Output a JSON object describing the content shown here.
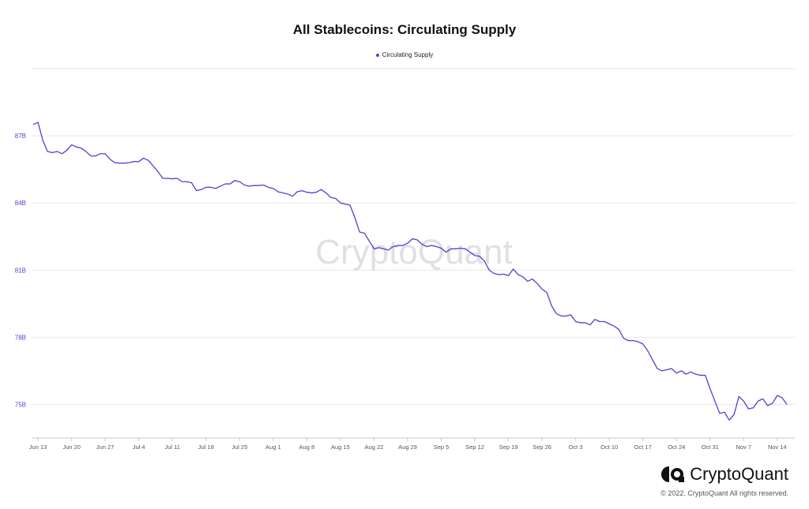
{
  "chart_data": {
    "type": "line",
    "title": "All Stablecoins: Circulating Supply",
    "legend_position": "top-center",
    "grid": true,
    "ylim": [
      73.5,
      90
    ],
    "y_ticks": [
      "75B",
      "78B",
      "81B",
      "84B",
      "87B"
    ],
    "y_tick_values": [
      75,
      78,
      81,
      84,
      87
    ],
    "x_ticks": [
      "Jun 13",
      "Jun 20",
      "Jun 27",
      "Jul 4",
      "Jul 11",
      "Jul 18",
      "Jul 25",
      "Aug 1",
      "Aug 8",
      "Aug 15",
      "Aug 22",
      "Aug 29",
      "Sep 5",
      "Sep 12",
      "Sep 19",
      "Sep 26",
      "Oct 3",
      "Oct 10",
      "Oct 17",
      "Oct 24",
      "Oct 31",
      "Nov 7",
      "Nov 14"
    ],
    "series": [
      {
        "name": "Circulating Supply",
        "color": "#5b3bd6",
        "start_label": "Jun 12",
        "values": [
          87.5,
          87.6,
          86.8,
          86.3,
          86.25,
          86.3,
          86.2,
          86.35,
          86.6,
          86.5,
          86.45,
          86.3,
          86.1,
          86.1,
          86.2,
          86.2,
          85.95,
          85.8,
          85.78,
          85.78,
          85.8,
          85.85,
          85.85,
          86.0,
          85.9,
          85.65,
          85.4,
          85.1,
          85.1,
          85.08,
          85.1,
          84.95,
          84.95,
          84.9,
          84.55,
          84.6,
          84.7,
          84.7,
          84.65,
          84.75,
          84.85,
          84.85,
          85.0,
          84.95,
          84.8,
          84.75,
          84.78,
          84.78,
          84.8,
          84.7,
          84.65,
          84.5,
          84.45,
          84.4,
          84.3,
          84.5,
          84.55,
          84.48,
          84.45,
          84.48,
          84.6,
          84.45,
          84.25,
          84.2,
          84.0,
          83.95,
          83.9,
          83.35,
          82.7,
          82.65,
          82.3,
          81.95,
          82.0,
          81.95,
          81.9,
          82.05,
          82.1,
          82.1,
          82.2,
          82.4,
          82.35,
          82.15,
          82.05,
          82.1,
          82.05,
          81.98,
          81.8,
          81.95,
          81.95,
          81.98,
          81.95,
          81.8,
          81.65,
          81.62,
          81.4,
          81.0,
          80.85,
          80.8,
          80.82,
          80.75,
          81.05,
          80.8,
          80.7,
          80.5,
          80.6,
          80.4,
          80.15,
          80.0,
          79.4,
          79.05,
          78.95,
          78.95,
          79.0,
          78.7,
          78.65,
          78.65,
          78.55,
          78.8,
          78.7,
          78.7,
          78.6,
          78.5,
          78.35,
          77.95,
          77.85,
          77.85,
          77.8,
          77.7,
          77.4,
          77.0,
          76.6,
          76.5,
          76.55,
          76.6,
          76.4,
          76.5,
          76.35,
          76.45,
          76.35,
          76.3,
          76.3,
          75.7,
          75.15,
          74.6,
          74.65,
          74.3,
          74.55,
          75.35,
          75.15,
          74.8,
          74.85,
          75.15,
          75.25,
          74.95,
          75.05,
          75.4,
          75.3,
          75.0
        ]
      }
    ]
  },
  "watermark": "CryptoQuant",
  "brand": {
    "name": "CryptoQuant",
    "icon": "cryptoquant-logo-icon",
    "copyright": "© 2022. CryptoQuant All rights reserved."
  }
}
